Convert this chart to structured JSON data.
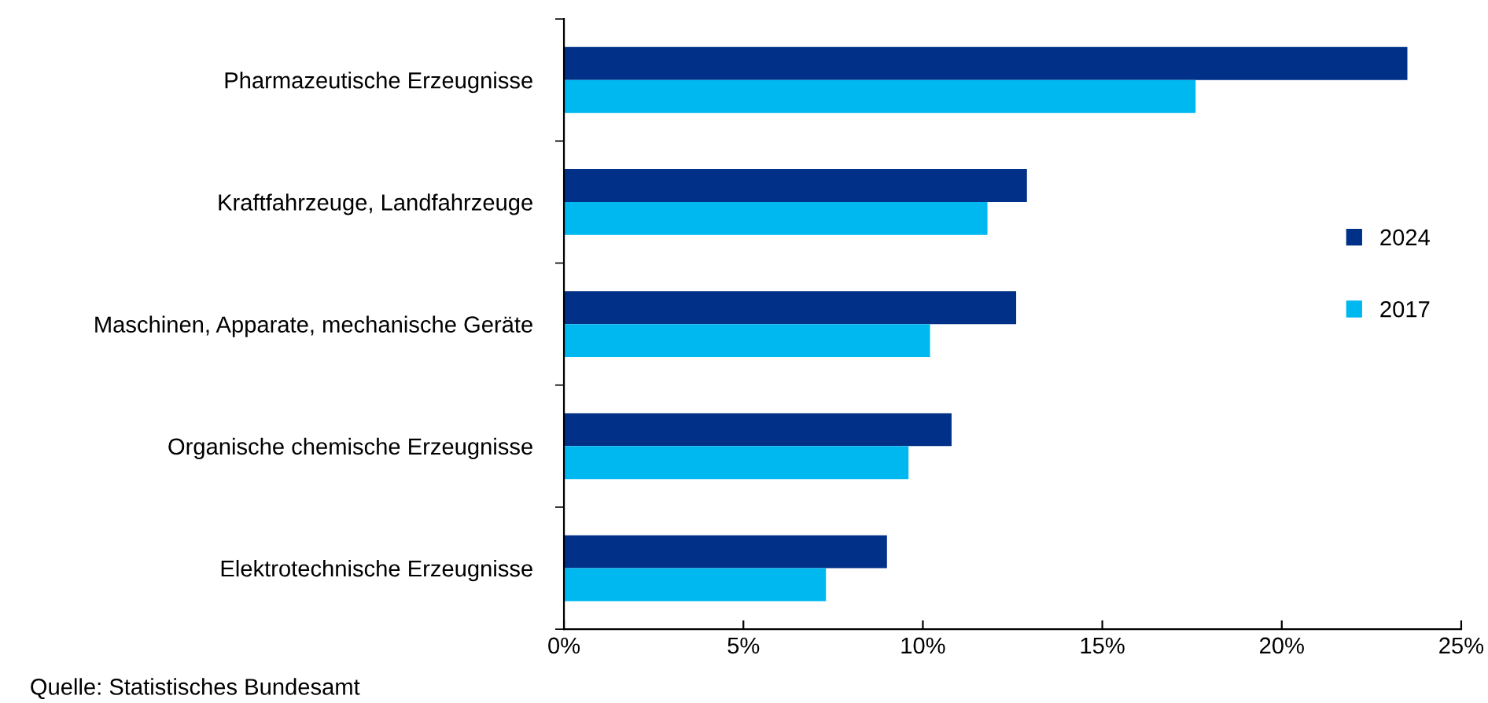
{
  "chart_data": {
    "type": "bar",
    "orientation": "horizontal",
    "categories": [
      "Pharmazeutische Erzeugnisse",
      "Kraftfahrzeuge, Landfahrzeuge",
      "Maschinen, Apparate, mechanische Geräte",
      "Organische chemische Erzeugnisse",
      "Elektrotechnische Erzeugnisse"
    ],
    "series": [
      {
        "name": "2024",
        "color": "#003087",
        "values": [
          23.5,
          12.9,
          12.6,
          10.8,
          9.0
        ]
      },
      {
        "name": "2017",
        "color": "#00b8f0",
        "values": [
          17.6,
          11.8,
          10.2,
          9.6,
          7.3
        ]
      }
    ],
    "xlim": [
      0,
      25
    ],
    "xticks": [
      {
        "value": 0,
        "label": "0%"
      },
      {
        "value": 5,
        "label": "5%"
      },
      {
        "value": 10,
        "label": "10%"
      },
      {
        "value": 15,
        "label": "15%"
      },
      {
        "value": 20,
        "label": "20%"
      },
      {
        "value": 25,
        "label": "25%"
      }
    ],
    "grid": false,
    "legend": "right",
    "annotations": [
      "Quelle: Statistisches Bundesamt"
    ]
  }
}
